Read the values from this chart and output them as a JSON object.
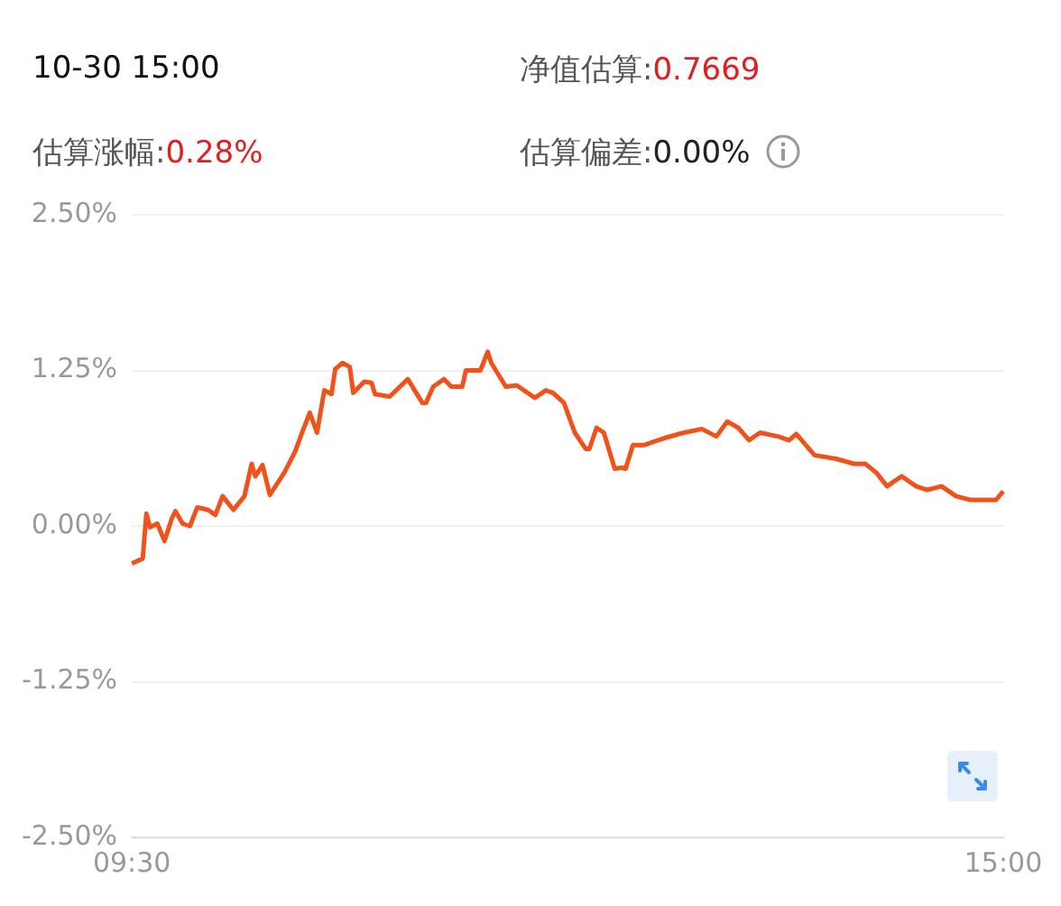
{
  "chart_data": {
    "type": "line",
    "title": "10-30 15:00",
    "annotations": [
      "净值估算:0.7669",
      "估算涨幅:0.28%",
      "估算偏差:0.00%"
    ],
    "categories": [
      "09:30",
      null,
      null,
      null,
      null,
      null,
      null,
      null,
      null,
      null,
      null,
      null,
      null,
      null,
      null,
      null,
      null,
      null,
      null,
      null,
      null,
      null,
      null,
      null,
      null,
      null,
      null,
      null,
      null,
      null,
      null,
      null,
      null,
      null,
      null,
      null,
      null,
      null,
      null,
      null,
      null,
      null,
      null,
      null,
      null,
      null,
      null,
      null,
      null,
      null,
      null,
      null,
      null,
      null,
      null,
      null,
      null,
      null,
      null,
      null,
      null,
      null,
      null,
      null,
      null,
      null,
      null,
      null,
      null,
      null,
      null,
      null,
      null,
      null,
      null,
      null,
      null,
      null,
      null,
      null,
      null,
      null,
      null,
      null,
      null,
      null,
      null,
      null,
      null,
      null,
      null,
      null,
      null,
      null,
      null,
      null,
      null,
      null,
      null,
      null,
      null,
      null,
      null,
      null,
      null,
      null,
      null,
      null,
      null,
      null,
      null,
      null,
      null,
      null,
      null,
      null,
      null,
      null,
      null,
      null,
      null,
      null,
      null,
      null,
      null,
      null,
      null,
      null,
      null,
      null,
      null,
      null,
      null,
      null,
      null,
      null,
      null,
      null,
      null,
      null,
      null,
      null,
      null,
      null,
      null,
      null,
      null,
      null,
      null,
      null,
      null,
      null,
      null,
      null,
      null,
      null,
      null,
      null,
      null,
      null,
      null,
      null,
      null,
      null,
      null,
      null,
      null,
      null,
      null,
      null,
      null,
      null,
      null,
      null,
      null,
      null,
      null,
      null,
      null,
      null,
      null,
      null,
      null,
      null,
      null,
      null,
      null,
      null,
      null,
      null,
      null,
      null,
      null,
      null,
      null,
      null,
      null,
      null,
      null,
      null,
      null,
      null,
      null,
      null,
      null,
      null,
      null,
      null,
      null,
      null,
      null,
      null,
      null,
      null,
      null,
      null,
      null,
      null,
      null,
      null,
      null,
      null,
      null,
      null,
      null,
      null,
      null,
      null,
      null,
      null,
      null,
      null,
      null,
      null,
      null,
      null,
      null,
      null,
      null,
      null,
      "15:00"
    ],
    "series": [
      {
        "color": "#f0521c",
        "values": [
          -0.3,
          null,
          null,
          -0.26,
          0.1,
          -0.01,
          null,
          0.02,
          null,
          -0.12,
          null,
          0.06,
          0.12,
          null,
          0.02,
          null,
          0.0,
          null,
          0.15,
          null,
          null,
          0.13,
          null,
          0.09,
          null,
          0.24,
          null,
          null,
          0.13,
          null,
          null,
          0.24,
          null,
          0.5,
          0.4,
          null,
          0.49,
          null,
          0.25,
          null,
          null,
          null,
          0.43,
          null,
          null,
          0.6,
          null,
          0.76,
          null,
          0.91,
          null,
          0.75,
          null,
          1.09,
          null,
          1.06,
          1.26,
          null,
          1.31,
          null,
          1.28,
          1.07,
          null,
          null,
          1.16,
          null,
          1.15,
          1.06,
          null,
          null,
          null,
          1.04,
          null,
          null,
          null,
          null,
          1.18,
          null,
          null,
          null,
          0.99,
          0.99,
          null,
          1.12,
          null,
          null,
          1.18,
          null,
          1.12,
          null,
          null,
          1.12,
          1.25,
          null,
          null,
          null,
          1.25,
          null,
          1.4,
          1.31,
          null,
          null,
          null,
          1.12,
          null,
          null,
          1.13,
          null,
          null,
          null,
          null,
          1.03,
          null,
          null,
          1.09,
          null,
          1.07,
          null,
          null,
          0.99,
          null,
          null,
          0.75,
          null,
          null,
          0.62,
          0.62,
          null,
          0.79,
          null,
          0.75,
          null,
          null,
          0.46,
          null,
          0.47,
          0.46,
          null,
          0.65,
          null,
          null,
          0.65,
          null,
          null,
          0.68,
          null,
          null,
          0.71,
          null,
          null,
          null,
          null,
          0.75,
          null,
          null,
          null,
          null,
          0.78,
          null,
          null,
          null,
          0.72,
          null,
          null,
          0.84,
          null,
          null,
          0.79,
          null,
          null,
          0.69,
          null,
          null,
          0.75,
          null,
          null,
          null,
          null,
          0.72,
          null,
          null,
          0.69,
          null,
          0.74,
          null,
          null,
          null,
          null,
          0.57,
          null,
          null,
          null,
          null,
          null,
          0.54,
          null,
          null,
          null,
          null,
          0.5,
          null,
          null,
          0.5,
          null,
          null,
          0.43,
          null,
          null,
          0.32,
          null,
          null,
          null,
          0.4,
          null,
          null,
          null,
          0.32,
          null,
          null,
          0.29,
          null,
          null,
          null,
          0.32,
          null,
          null,
          null,
          0.24,
          null,
          null,
          null,
          0.21,
          null,
          null,
          null,
          null,
          null,
          null,
          0.21,
          null,
          0.28
        ]
      }
    ],
    "ylim": [
      -2.5,
      2.5
    ],
    "yticks": [
      {
        "value": -2.5,
        "label": "-2.50%"
      },
      {
        "value": -1.25,
        "label": "-1.25%"
      },
      {
        "value": 0,
        "label": "0.00%"
      },
      {
        "value": 1.25,
        "label": "1.25%"
      },
      {
        "value": 2.5,
        "label": "2.50%"
      }
    ],
    "grid": "y",
    "legend": false,
    "marker": "none",
    "line_style": "solid"
  }
}
